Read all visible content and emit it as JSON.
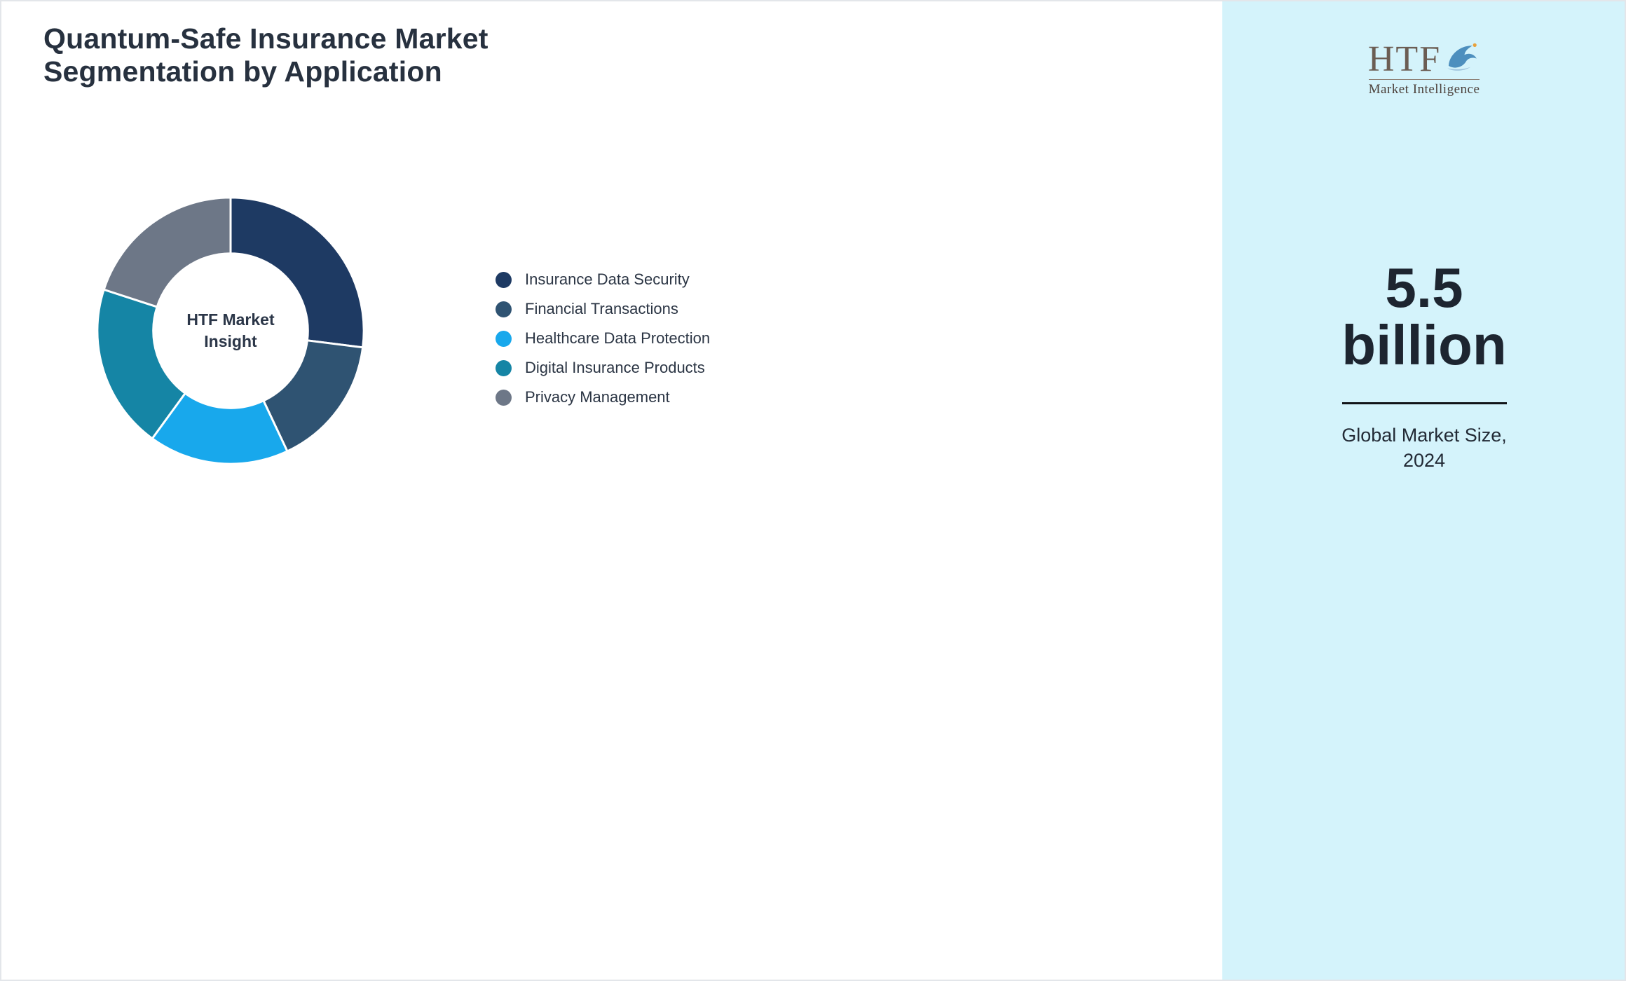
{
  "page": {
    "title_line1": "Quantum-Safe Insurance Market",
    "title_line2": "Segmentation by Application"
  },
  "donut_center": {
    "line1": "HTF Market",
    "line2": "Insight"
  },
  "sidebar": {
    "logo_text": "HTF",
    "logo_subtext": "Market Intelligence",
    "stat_value_line1": "5.5",
    "stat_value_line2": "billion",
    "stat_label_line1": "Global Market Size,",
    "stat_label_line2": "2024"
  },
  "colors": {
    "panel_background": "#d4f3fb",
    "title_text": "#27313f",
    "navy": "#1e3a63",
    "slate_blue": "#2f5372",
    "bright_blue": "#18a8ec",
    "teal": "#1585a5",
    "gray": "#6d7787"
  },
  "chart_data": {
    "type": "pie",
    "donut": true,
    "title": "Quantum-Safe Insurance Market Segmentation by Application",
    "center_label": "HTF Market Insight",
    "legend_position": "right",
    "unit": "percent (estimated share)",
    "categories": [
      "Insurance Data Security",
      "Financial Transactions",
      "Healthcare Data Protection",
      "Digital Insurance Products",
      "Privacy Management"
    ],
    "values": [
      27,
      16,
      17,
      20,
      20
    ],
    "colors": [
      "#1e3a63",
      "#2f5372",
      "#18a8ec",
      "#1585a5",
      "#6d7787"
    ]
  }
}
